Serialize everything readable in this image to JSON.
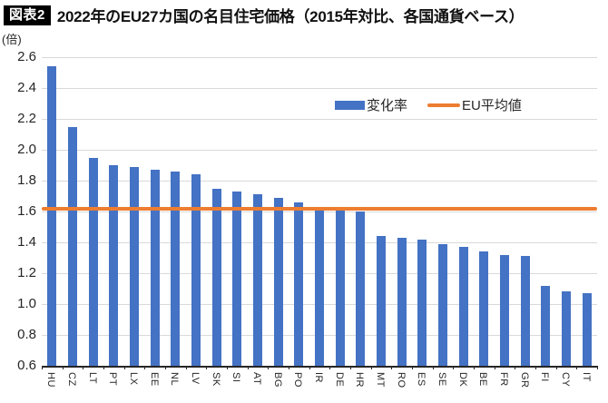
{
  "header": {
    "badge": "図表2",
    "title": "2022年のEU27カ国の名目住宅価格（2015年対比、各国通貨ベース）"
  },
  "chart_data": {
    "type": "bar",
    "title": "2022年のEU27カ国の名目住宅価格（2015年対比、各国通貨ベース）",
    "categories": [
      "HU",
      "CZ",
      "LT",
      "PT",
      "LX",
      "EE",
      "NL",
      "LV",
      "SK",
      "SI",
      "AT",
      "BG",
      "PO",
      "IR",
      "DE",
      "HR",
      "MT",
      "RO",
      "ES",
      "SE",
      "DK",
      "BE",
      "FR",
      "GR",
      "FI",
      "CY",
      "IT"
    ],
    "series": [
      {
        "name": "変化率",
        "color": "#4472C4",
        "values": [
          2.54,
          2.15,
          1.95,
          1.9,
          1.89,
          1.87,
          1.86,
          1.84,
          1.75,
          1.73,
          1.71,
          1.69,
          1.66,
          1.63,
          1.61,
          1.6,
          1.44,
          1.43,
          1.42,
          1.39,
          1.37,
          1.34,
          1.32,
          1.31,
          1.12,
          1.08,
          1.07
        ]
      }
    ],
    "reference_line": {
      "name": "EU平均値",
      "value": 1.62,
      "color": "#ED7D31"
    },
    "ylabel": "(倍)",
    "ylim": [
      0.6,
      2.6
    ],
    "ytick_step": 0.2,
    "yticks": [
      0.6,
      0.8,
      1.0,
      1.2,
      1.4,
      1.6,
      1.8,
      2.0,
      2.2,
      2.4,
      2.6
    ],
    "grid": true,
    "gridline_color": "#d9d9d9",
    "axis_color": "#262626",
    "legend_position": "top-right-inside"
  }
}
